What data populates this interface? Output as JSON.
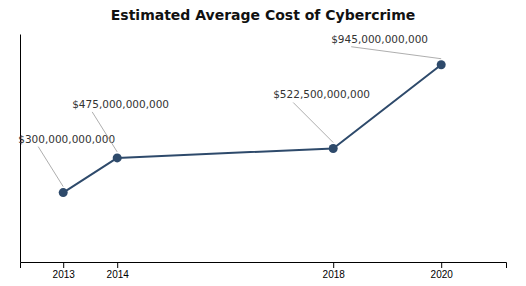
{
  "chart_data": {
    "type": "line",
    "title": "Estimated Average Cost of Cybercrime",
    "x": [
      2013,
      2014,
      2018,
      2020
    ],
    "values": [
      300000000000,
      475000000000,
      522500000000,
      945000000000
    ],
    "value_labels": [
      "$300,000,000,000",
      "$475,000,000,000",
      "$522,500,000,000",
      "$945,000,000,000"
    ],
    "data_labels": true,
    "color": "#2e4a6b",
    "marker": "circle",
    "xlim": [
      2012.2,
      2021.2
    ],
    "xticks": [
      2013,
      2014,
      2018,
      2020
    ],
    "ylim": [
      -50000000000,
      1100000000000
    ],
    "yticks": [],
    "tick_labels": "x"
  }
}
